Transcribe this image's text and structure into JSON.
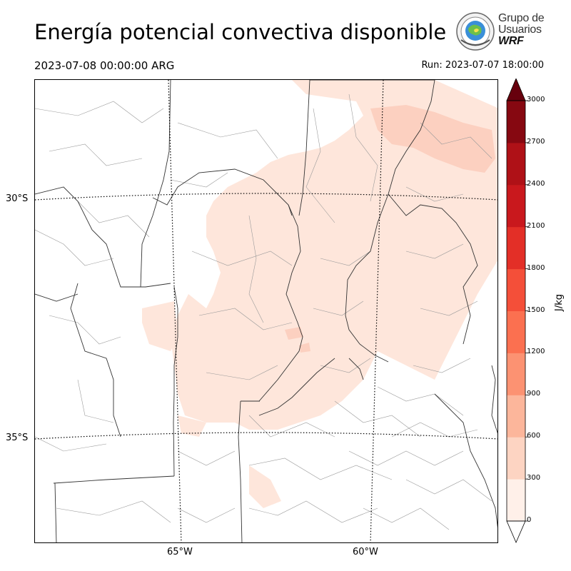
{
  "header": {
    "title": "Energía potencial convectiva disponible",
    "valid_time": "2023-07-08 00:00:00 ARG",
    "run_time": "Run: 2023-07-07 18:00:00"
  },
  "logo": {
    "line1": "Grupo de",
    "line2": "Usuarios",
    "line3": "WRF"
  },
  "map": {
    "lat_labels": [
      "30°S",
      "35°S"
    ],
    "lon_labels": [
      "65°W",
      "60°W"
    ],
    "field_colors": {
      "low": "#fee6db",
      "mid": "#fcd0c0"
    }
  },
  "colorbar": {
    "unit": "J/kg",
    "ticks": [
      "0",
      "300",
      "600",
      "900",
      "1200",
      "1500",
      "1800",
      "2100",
      "2400",
      "2700",
      "3000"
    ],
    "colors": [
      "#fff0e9",
      "#fdd4c2",
      "#fcb69b",
      "#fc9272",
      "#fb7050",
      "#f44f39",
      "#e32f27",
      "#c9181d",
      "#af1117",
      "#860811"
    ],
    "under_color": "#ffffff",
    "over_color": "#67000d"
  }
}
